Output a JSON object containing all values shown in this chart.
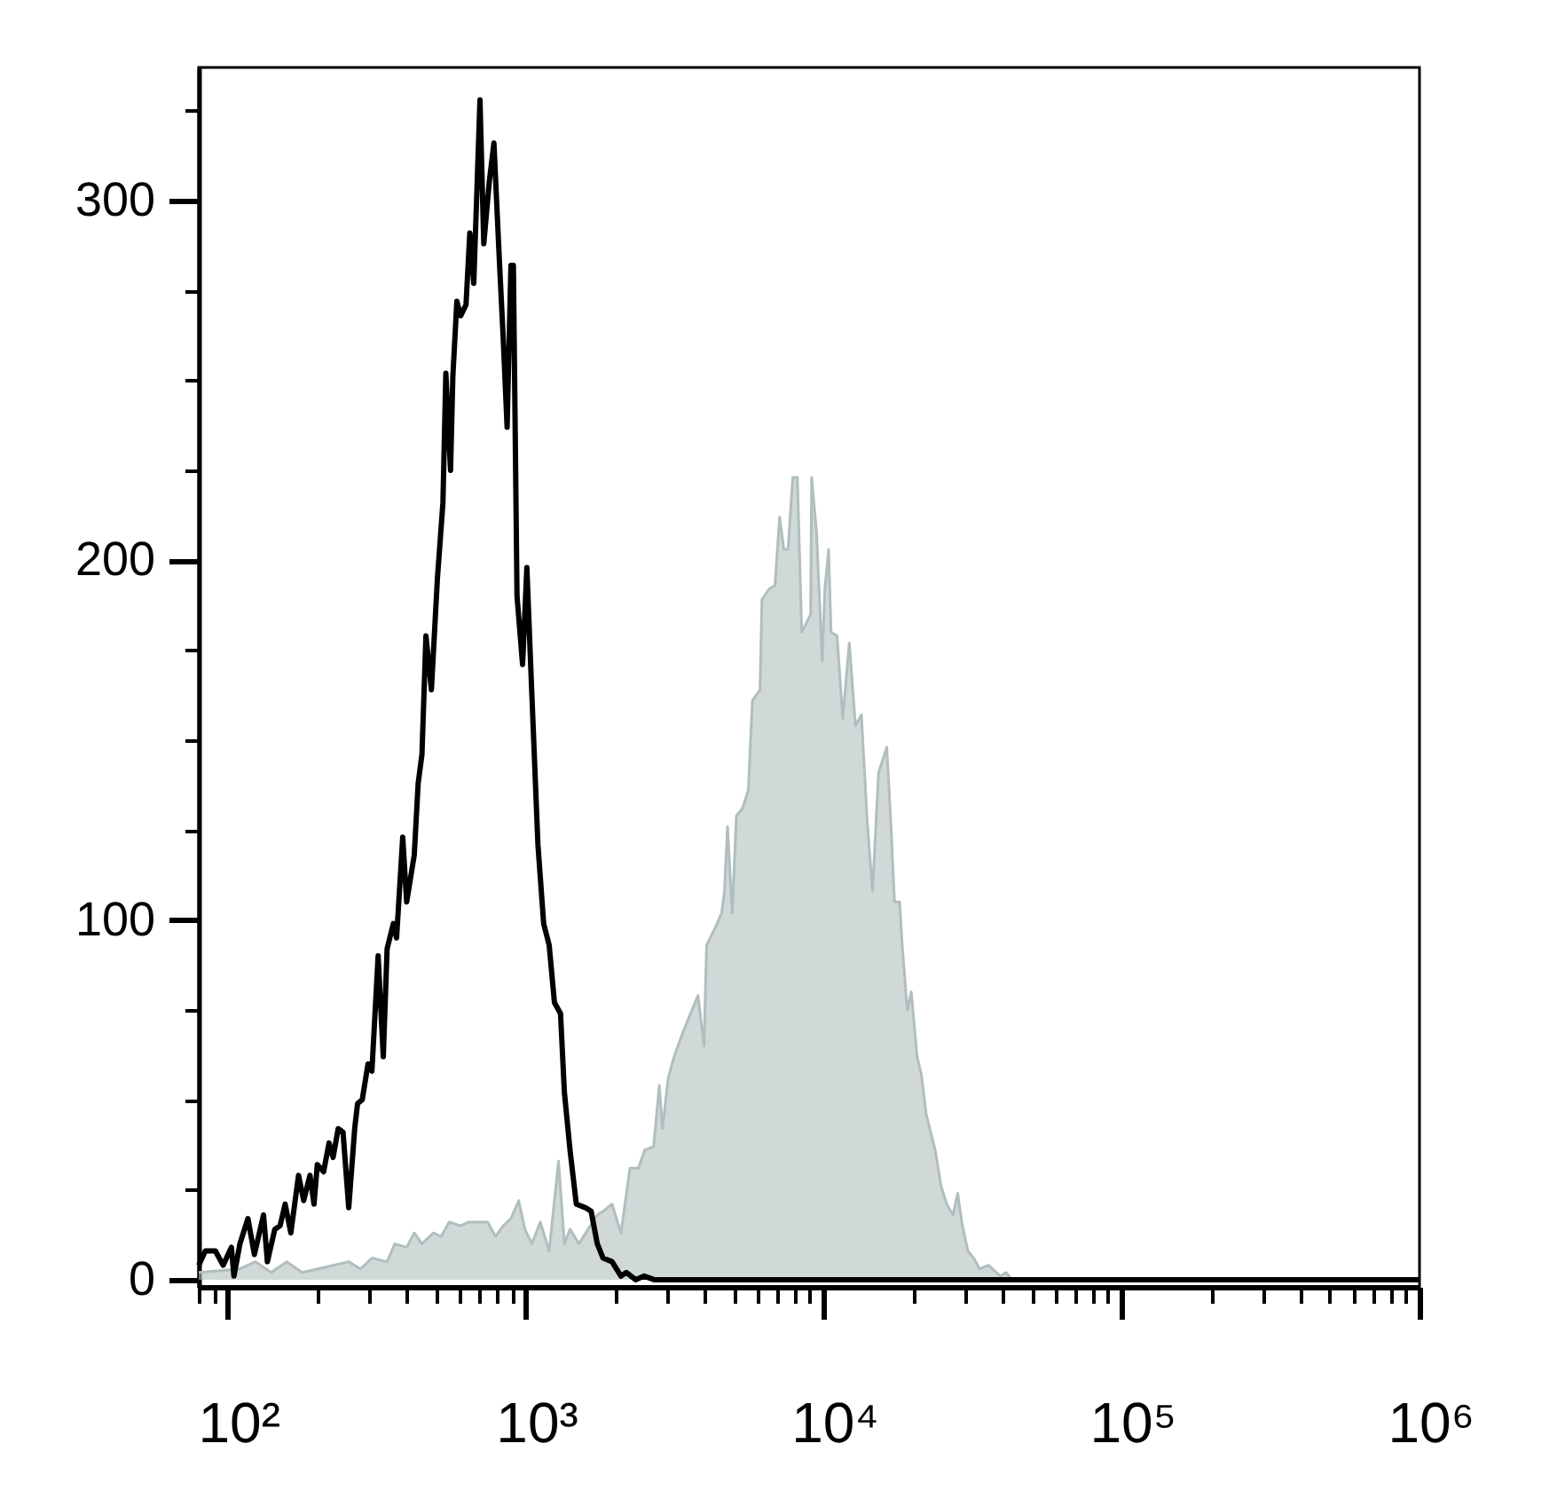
{
  "chart_data": {
    "type": "line",
    "log": "x",
    "xlim": [
      80,
      1000000
    ],
    "ylim": [
      -2,
      337
    ],
    "xticks": [
      {
        "value": 80,
        "label": null
      },
      {
        "value": 90,
        "label": null
      },
      {
        "value": 100,
        "label": "10²"
      },
      {
        "value": 200,
        "label": null
      },
      {
        "value": 300,
        "label": null
      },
      {
        "value": 400,
        "label": null
      },
      {
        "value": 500,
        "label": null
      },
      {
        "value": 600,
        "label": null
      },
      {
        "value": 700,
        "label": null
      },
      {
        "value": 800,
        "label": null
      },
      {
        "value": 900,
        "label": null
      },
      {
        "value": 1000,
        "label": "10³"
      },
      {
        "value": 2000,
        "label": null
      },
      {
        "value": 3000,
        "label": null
      },
      {
        "value": 4000,
        "label": null
      },
      {
        "value": 5000,
        "label": null
      },
      {
        "value": 6000,
        "label": null
      },
      {
        "value": 7000,
        "label": null
      },
      {
        "value": 8000,
        "label": null
      },
      {
        "value": 9000,
        "label": null
      },
      {
        "value": 10000,
        "label": "10⁴"
      },
      {
        "value": 20000,
        "label": null
      },
      {
        "value": 30000,
        "label": null
      },
      {
        "value": 40000,
        "label": null
      },
      {
        "value": 50000,
        "label": null
      },
      {
        "value": 60000,
        "label": null
      },
      {
        "value": 70000,
        "label": null
      },
      {
        "value": 80000,
        "label": null
      },
      {
        "value": 90000,
        "label": null
      },
      {
        "value": 100000,
        "label": "10⁵"
      },
      {
        "value": 200000,
        "label": null
      },
      {
        "value": 300000,
        "label": null
      },
      {
        "value": 400000,
        "label": null
      },
      {
        "value": 500000,
        "label": null
      },
      {
        "value": 600000,
        "label": null
      },
      {
        "value": 700000,
        "label": null
      },
      {
        "value": 800000,
        "label": null
      },
      {
        "value": 900000,
        "label": null
      },
      {
        "value": 1000000,
        "label": "10⁶"
      }
    ],
    "yticks": [
      0,
      {
        "value": 25,
        "label": null
      },
      {
        "value": 50,
        "label": null
      },
      {
        "value": 75,
        "label": null
      },
      100,
      {
        "value": 125,
        "label": null
      },
      {
        "value": 150,
        "label": null
      },
      {
        "value": 175,
        "label": null
      },
      200,
      {
        "value": 225,
        "label": null
      },
      {
        "value": 250,
        "label": null
      },
      {
        "value": 275,
        "label": null
      },
      300,
      {
        "value": 325,
        "label": null
      }
    ],
    "series": [
      {
        "type": "area",
        "color": "#b0bebe",
        "x": [
          80,
          110,
          124,
          140,
          158,
          178,
          201,
          226,
          255,
          279,
          305,
          343,
          364,
          399,
          423,
          449,
          491,
          521,
          554,
          606,
          642,
          704,
          746,
          793,
          841,
          893,
          948,
          995,
          1050,
          1120,
          1200,
          1290,
          1350,
          1410,
          1510,
          1620,
          1740,
          1820,
          1950,
          2090,
          2240,
          2390,
          2510,
          2690,
          2810,
          2880,
          3010,
          3150,
          3380,
          3620,
          3790,
          3970,
          4050,
          4340,
          4550,
          4650,
          4760,
          4940,
          5100,
          5340,
          5590,
          5770,
          6120,
          6210,
          6560,
          6870,
          7120,
          7360,
          7600,
          7880,
          8170,
          8450,
          9050,
          9120,
          9470,
          9900,
          10100,
          10400,
          10600,
          11100,
          11600,
          12200,
          12800,
          13400,
          14000,
          14600,
          15300,
          16300,
          16800,
          17300,
          18000,
          18400,
          19100,
          19700,
          20600,
          21300,
          22100,
          23700,
          24800,
          25900,
          27200,
          28200,
          29100,
          30500,
          31900,
          33400,
          35800,
          39200,
          41000,
          42900
        ],
        "values": [
          2,
          3,
          5,
          2,
          5,
          2,
          3,
          4,
          5,
          3,
          6,
          5,
          10,
          9,
          13,
          10,
          13,
          12,
          16,
          15,
          16,
          16,
          16,
          12,
          15,
          17,
          22,
          14,
          10,
          16,
          8,
          33,
          10,
          14,
          10,
          14,
          18,
          19,
          21,
          13,
          31,
          31,
          36,
          37,
          54,
          42,
          56,
          62,
          69,
          75,
          79,
          65,
          93,
          98,
          102,
          108,
          126,
          102,
          129,
          131,
          136,
          161,
          164,
          189,
          192,
          193,
          212,
          203,
          203,
          223,
          223,
          180,
          185,
          223,
          208,
          172,
          192,
          203,
          180,
          179,
          156,
          177,
          154,
          157,
          128,
          108,
          141,
          148,
          128,
          105,
          105,
          92,
          75,
          80,
          62,
          57,
          46,
          36,
          26,
          21,
          18,
          24,
          16,
          8,
          6,
          3,
          4,
          1,
          2,
          0
        ]
      },
      {
        "color": "#000000",
        "x": [
          80,
          84.2,
          91,
          96.6,
          103,
          105,
          110,
          117,
          123,
          132,
          136,
          144,
          150,
          156,
          163,
          173,
          180,
          189,
          195,
          200,
          210,
          219,
          226,
          235,
          244,
          255,
          267,
          273,
          283,
          296,
          305,
          320,
          333,
          343,
          360,
          369,
          387,
          399,
          423,
          436,
          449,
          463,
          483,
          506,
          528,
          540,
          560,
          570,
          588,
          606,
          631,
          650,
          670,
          703,
          724,
          755,
          783,
          816,
          841,
          867,
          893,
          910,
          936,
          977,
          1010,
          1040,
          1100,
          1150,
          1200,
          1250,
          1310,
          1350,
          1410,
          1480,
          1590,
          1660,
          1740,
          1820,
          1950,
          2090,
          2180,
          2340,
          2500,
          2700,
          1000000
        ],
        "values": [
          4,
          8,
          8,
          4,
          9,
          1,
          10,
          17,
          7,
          18,
          5,
          14,
          15,
          21,
          13,
          29,
          22,
          29,
          21,
          32,
          30,
          38,
          34,
          42,
          41,
          20,
          42,
          49,
          50,
          60,
          58,
          90,
          62,
          92,
          99,
          95,
          123,
          105,
          118,
          138,
          146,
          179,
          164,
          195,
          216,
          252,
          225,
          251,
          272,
          268,
          271,
          291,
          277,
          328,
          288,
          305,
          316,
          284,
          262,
          237,
          282,
          282,
          190,
          171,
          198,
          171,
          121,
          99,
          93,
          77,
          74,
          52,
          36,
          21,
          20,
          19,
          10,
          6,
          5,
          1,
          2,
          0,
          1,
          0,
          0
        ]
      }
    ]
  }
}
